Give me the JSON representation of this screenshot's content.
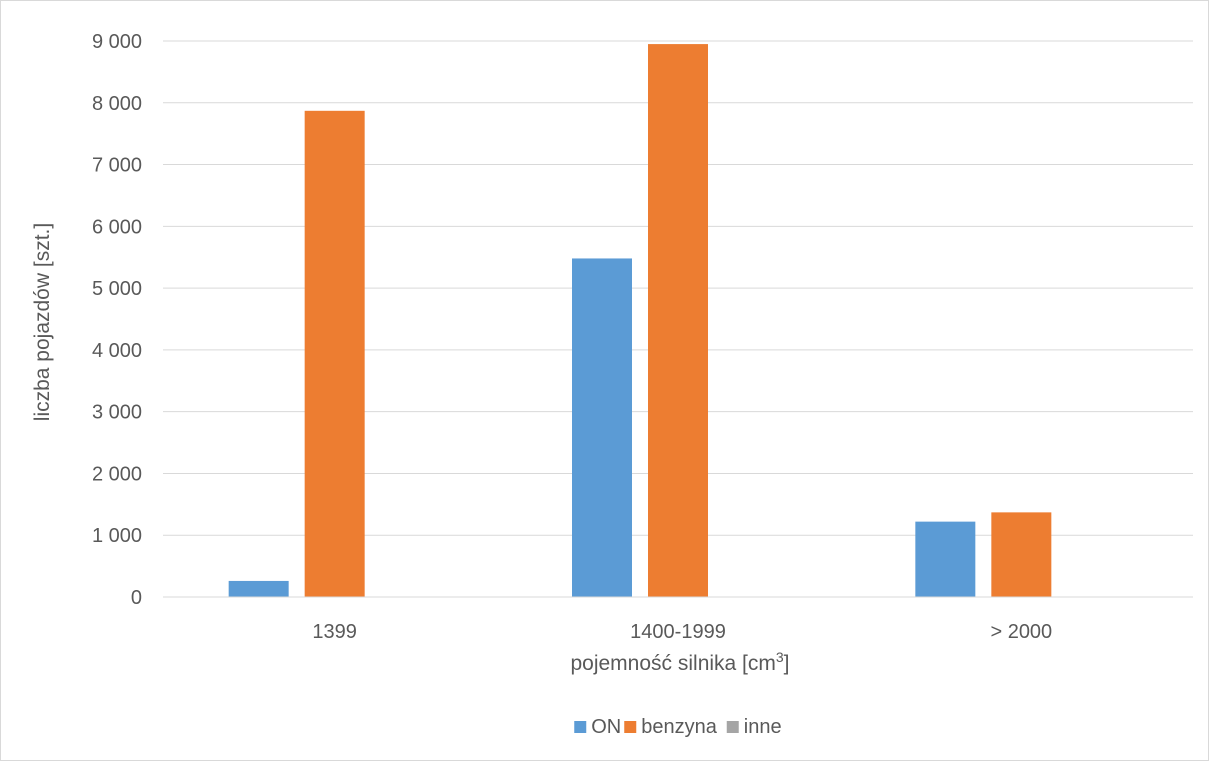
{
  "chart_data": {
    "type": "bar",
    "categories": [
      "1399",
      "1400-1999",
      "> 2000"
    ],
    "series": [
      {
        "name": "ON",
        "values": [
          260,
          5480,
          1220
        ],
        "color": "#5b9bd5"
      },
      {
        "name": "benzyna",
        "values": [
          7870,
          8950,
          1370
        ],
        "color": "#ed7d31"
      },
      {
        "name": "inne",
        "values": [
          0,
          0,
          0
        ],
        "color": "#a5a5a5"
      }
    ],
    "title": "",
    "xlabel": "pojemność silnika [cm",
    "xlabel_sup": "3",
    "xlabel_end": "]",
    "ylabel": "liczba pojazdów [szt.]",
    "ylim": [
      0,
      9000
    ],
    "yticks": [
      0,
      1000,
      2000,
      3000,
      4000,
      5000,
      6000,
      7000,
      8000,
      9000
    ],
    "ytick_labels": [
      "0",
      "1 000",
      "2 000",
      "3 000",
      "4 000",
      "5 000",
      "6 000",
      "7 000",
      "8 000",
      "9 000"
    ],
    "grid": true,
    "legend_position": "bottom"
  }
}
